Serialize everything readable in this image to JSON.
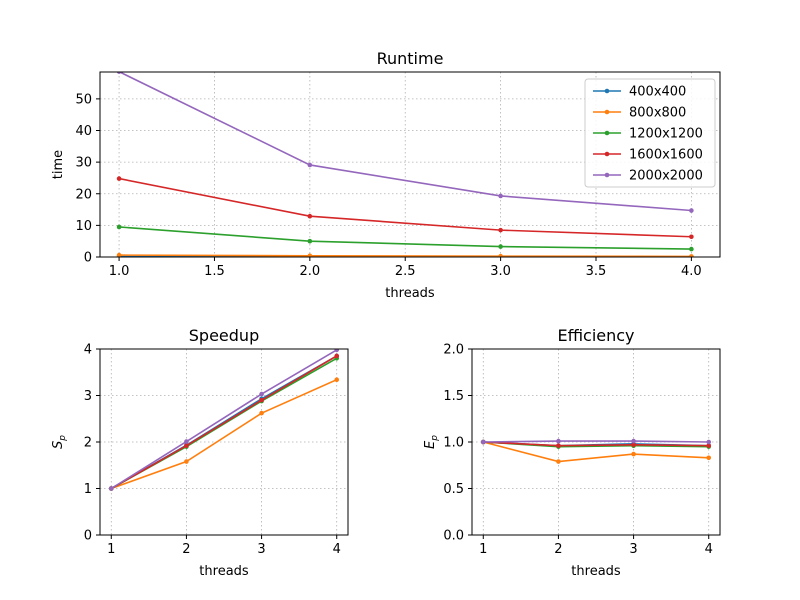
{
  "chart_data": [
    {
      "type": "line",
      "title": "Runtime",
      "xlabel": "threads",
      "ylabel": "time",
      "xlim": [
        0.9,
        4.15
      ],
      "ylim": [
        0,
        58.5
      ],
      "xticks": [
        "1.0",
        "1.5",
        "2.0",
        "2.5",
        "3.0",
        "3.5",
        "4.0"
      ],
      "yticks": [
        "0",
        "10",
        "20",
        "30",
        "40",
        "50"
      ],
      "grid": true,
      "legend": "top-right",
      "x": [
        1,
        2,
        3,
        4
      ],
      "series": [
        {
          "name": "400x400",
          "color": "#1f77b4",
          "values": [
            0.15,
            0.08,
            0.05,
            0.04
          ]
        },
        {
          "name": "800x800",
          "color": "#ff7f0e",
          "values": [
            0.6,
            0.38,
            0.25,
            0.19
          ]
        },
        {
          "name": "1200x1200",
          "color": "#2ca02c",
          "values": [
            9.5,
            5.0,
            3.3,
            2.5
          ]
        },
        {
          "name": "1600x1600",
          "color": "#d62728",
          "values": [
            24.8,
            12.9,
            8.5,
            6.4
          ]
        },
        {
          "name": "2000x2000",
          "color": "#9467bd",
          "values": [
            58.6,
            29.1,
            19.3,
            14.7
          ]
        }
      ]
    },
    {
      "type": "line",
      "title": "Speedup",
      "xlabel": "threads",
      "ylabel": "Sp",
      "xlim": [
        0.85,
        4.15
      ],
      "ylim": [
        0,
        4
      ],
      "xticks": [
        "1",
        "2",
        "3",
        "4"
      ],
      "yticks": [
        "0",
        "1",
        "2",
        "3",
        "4"
      ],
      "grid": true,
      "x": [
        1,
        2,
        3,
        4
      ],
      "series": [
        {
          "color": "#1f77b4",
          "values": [
            1,
            1.93,
            2.93,
            3.85
          ]
        },
        {
          "color": "#ff7f0e",
          "values": [
            1,
            1.58,
            2.62,
            3.34
          ]
        },
        {
          "color": "#2ca02c",
          "values": [
            1,
            1.9,
            2.88,
            3.8
          ]
        },
        {
          "color": "#d62728",
          "values": [
            1,
            1.92,
            2.9,
            3.85
          ]
        },
        {
          "color": "#9467bd",
          "values": [
            1,
            2.01,
            3.03,
            3.98
          ]
        }
      ]
    },
    {
      "type": "line",
      "title": "Efficiency",
      "xlabel": "threads",
      "ylabel": "Ep",
      "xlim": [
        0.85,
        4.15
      ],
      "ylim": [
        0,
        2
      ],
      "xticks": [
        "1",
        "2",
        "3",
        "4"
      ],
      "yticks": [
        "0.0",
        "0.5",
        "1.0",
        "1.5",
        "2.0"
      ],
      "grid": true,
      "x": [
        1,
        2,
        3,
        4
      ],
      "series": [
        {
          "color": "#1f77b4",
          "values": [
            1,
            0.96,
            0.98,
            0.96
          ]
        },
        {
          "color": "#ff7f0e",
          "values": [
            1,
            0.79,
            0.87,
            0.83
          ]
        },
        {
          "color": "#2ca02c",
          "values": [
            1,
            0.95,
            0.96,
            0.95
          ]
        },
        {
          "color": "#d62728",
          "values": [
            1,
            0.96,
            0.97,
            0.96
          ]
        },
        {
          "color": "#9467bd",
          "values": [
            1,
            1.01,
            1.01,
            1.0
          ]
        }
      ]
    }
  ]
}
